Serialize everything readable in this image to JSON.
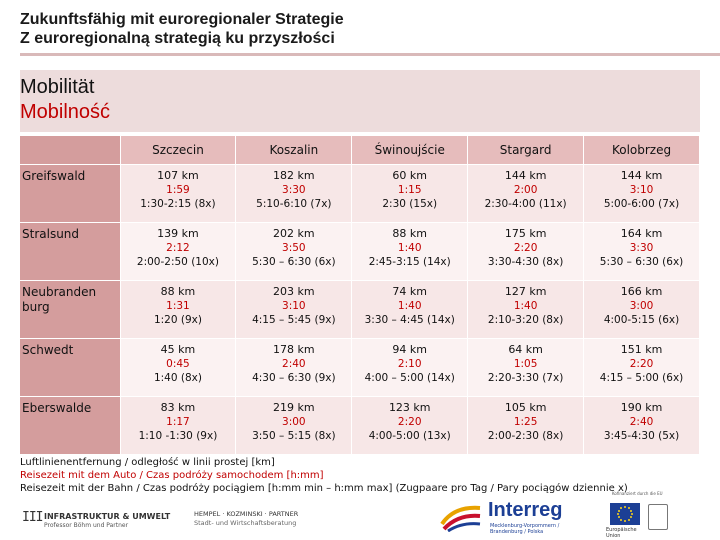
{
  "header": {
    "title_de": "Zukunftsfähig mit euroregionaler Strategie",
    "title_pl": "Z euroregionalną strategią ku przyszłości"
  },
  "section": {
    "title_de": "Mobilität",
    "title_pl": "Mobilność"
  },
  "table": {
    "columns": [
      "Szczecin",
      "Koszalin",
      "Świnoujście",
      "Stargard",
      "Kolobrzeg"
    ],
    "rows": [
      {
        "name": "Greifswald",
        "cells": [
          {
            "km": "107 km",
            "car": "1:59",
            "rail": "1:30-2:15 (8x)"
          },
          {
            "km": "182 km",
            "car": "3:30",
            "rail": "5:10-6:10 (7x)"
          },
          {
            "km": "60 km",
            "car": "1:15",
            "rail": "2:30 (15x)"
          },
          {
            "km": "144 km",
            "car": "2:00",
            "rail": "2:30-4:00 (11x)"
          },
          {
            "km": "144 km",
            "car": "3:10",
            "rail": "5:00-6:00 (7x)"
          }
        ]
      },
      {
        "name": "Stralsund",
        "cells": [
          {
            "km": "139 km",
            "car": "2:12",
            "rail": "2:00-2:50 (10x)"
          },
          {
            "km": "202 km",
            "car": "3:50",
            "rail": "5:30 – 6:30 (6x)"
          },
          {
            "km": "88 km",
            "car": "1:40",
            "rail": "2:45-3:15 (14x)"
          },
          {
            "km": "175 km",
            "car": "2:20",
            "rail": "3:30-4:30 (8x)"
          },
          {
            "km": "164 km",
            "car": "3:30",
            "rail": "5:30 – 6:30 (6x)"
          }
        ]
      },
      {
        "name": "Neubranden burg",
        "cells": [
          {
            "km": "88 km",
            "car": "1:31",
            "rail": "1:20 (9x)"
          },
          {
            "km": "203 km",
            "car": "3:10",
            "rail": "4:15 – 5:45 (9x)"
          },
          {
            "km": "74 km",
            "car": "1:40",
            "rail": "3:30 – 4:45 (14x)"
          },
          {
            "km": "127 km",
            "car": "1:40",
            "rail": "2:10-3:20 (8x)"
          },
          {
            "km": "166 km",
            "car": "3:00",
            "rail": "4:00-5:15 (6x)"
          }
        ]
      },
      {
        "name": "Schwedt",
        "cells": [
          {
            "km": "45 km",
            "car": "0:45",
            "rail": "1:40 (8x)"
          },
          {
            "km": "178 km",
            "car": "2:40",
            "rail": "4:30 – 6:30 (9x)"
          },
          {
            "km": "94 km",
            "car": "2:10",
            "rail": "4:00 – 5:00 (14x)"
          },
          {
            "km": "64 km",
            "car": "1:05",
            "rail": "2:20-3:30 (7x)"
          },
          {
            "km": "151 km",
            "car": "2:20",
            "rail": "4:15 – 5:00 (6x)"
          }
        ]
      },
      {
        "name": "Eberswalde",
        "cells": [
          {
            "km": "83 km",
            "car": "1:17",
            "rail": "1:10 -1:30 (9x)"
          },
          {
            "km": "219 km",
            "car": "3:00",
            "rail": "3:50 – 5:15 (8x)"
          },
          {
            "km": "123 km",
            "car": "2:20",
            "rail": "4:00-5:00 (13x)"
          },
          {
            "km": "105 km",
            "car": "1:25",
            "rail": "2:00-2:30 (8x)"
          },
          {
            "km": "190 km",
            "car": "2:40",
            "rail": "3:45-4:30 (5x)"
          }
        ]
      }
    ]
  },
  "legend": {
    "line1": "Luftlinienentfernung / odległość w linii prostej [km]",
    "line2": "Reisezeit mit dem Auto / Czas podróży samochodem [h:mm]",
    "line3": "Reisezeit mit der Bahn / Czas podróży pociągiem [h:mm min – h:mm max] (Zugpaare pro Tag / Pary pociągów dziennie x)"
  },
  "logos": {
    "infra_mark": "III",
    "infra_name": "INFRASTRUKTUR & UMWELT",
    "infra_sub": "Professor Böhm und Partner",
    "hempel_name": "HEMPEL · KOZMINSKI · PARTNER",
    "hempel_sub": "Stadt- und Wirtschaftsberatung",
    "interreg": "Interreg",
    "interreg_sub": "Mecklenburg-Vorpommern / Brandenburg / Polska",
    "eu_sub": "Europäische Union",
    "tiny_note": "Kofinanziert durch die EU"
  },
  "colors": {
    "accent_red": "#c00000",
    "header_pink": "#e6bcbc",
    "row_header": "#d49d9d",
    "interreg_blue": "#1c3f95"
  }
}
